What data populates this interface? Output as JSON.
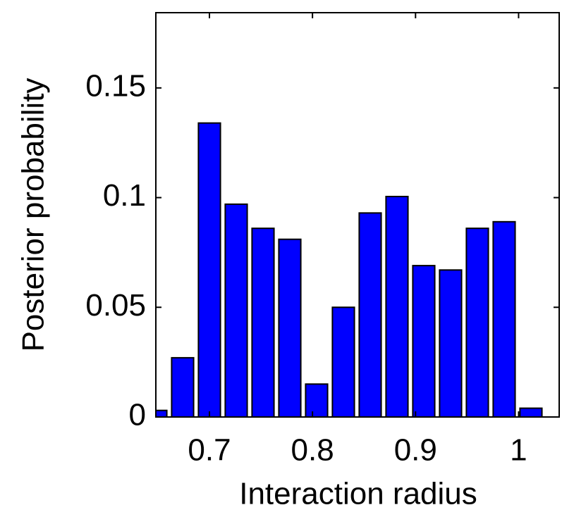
{
  "chart_data": {
    "type": "bar",
    "xlabel": "Interaction radius",
    "ylabel": "Posterior probability",
    "x": [
      0.648,
      0.674,
      0.7,
      0.726,
      0.752,
      0.778,
      0.804,
      0.83,
      0.856,
      0.882,
      0.908,
      0.934,
      0.96,
      0.986,
      1.012
    ],
    "values": [
      0.003,
      0.027,
      0.134,
      0.097,
      0.086,
      0.081,
      0.015,
      0.05,
      0.093,
      0.1005,
      0.069,
      0.067,
      0.086,
      0.089,
      0.004
    ],
    "color": "#0000ff",
    "xlim": [
      0.648,
      1.0394
    ],
    "xticks": [
      0.7,
      0.8,
      0.9,
      1
    ],
    "ylim": [
      0,
      0.1843
    ],
    "yticks": [
      0,
      0.05,
      0.1,
      0.15
    ],
    "grid": false
  }
}
